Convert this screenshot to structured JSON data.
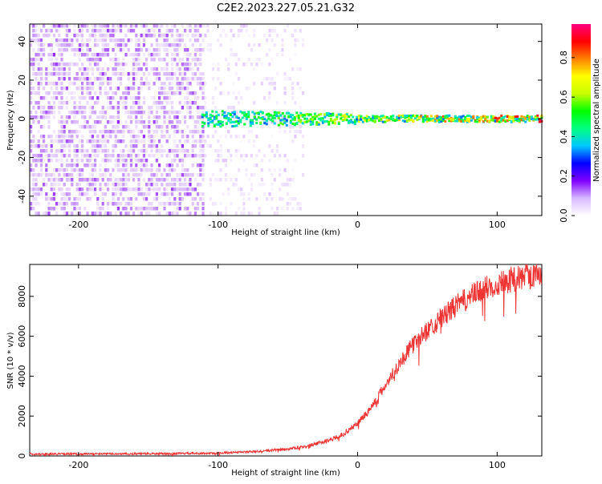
{
  "title": "C2E2.2023.227.05.21.G32",
  "chart_data": [
    {
      "type": "heatmap",
      "title": "C2E2.2023.227.05.21.G32",
      "xlabel": "Height of straight line (km)",
      "ylabel": "Frequency (Hz)",
      "xlim": [
        -235,
        132
      ],
      "ylim": [
        -50,
        49
      ],
      "xticks": [
        -200,
        -100,
        0,
        100
      ],
      "yticks": [
        -40,
        -20,
        0,
        20,
        40
      ],
      "colorbar": {
        "label": "Normalized spectral amplitude",
        "range": [
          0,
          0.97
        ],
        "ticks": [
          0.0,
          0.2,
          0.4,
          0.6,
          0.8
        ],
        "tick_labels": [
          "0.0",
          "0.2",
          "0.4",
          "0.6",
          "0.8"
        ],
        "colormap": [
          "#ffffff",
          "#d8b8ff",
          "#8000ff",
          "#0000ff",
          "#00c8ff",
          "#00ff80",
          "#00ff00",
          "#c8ff00",
          "#ffff00",
          "#ff8000",
          "#ff0000",
          "#ff0080"
        ]
      },
      "regions": [
        {
          "name": "broadband noise (dense)",
          "x_range": [
            -235,
            -110
          ],
          "freq_range": [
            -50,
            49
          ],
          "amplitude": 0.1
        },
        {
          "name": "broadband noise (sparse)",
          "x_range": [
            -110,
            -40
          ],
          "freq_range": [
            -50,
            49
          ],
          "amplitude": 0.05
        },
        {
          "name": "carrier line",
          "x_range": [
            -112,
            132
          ],
          "center_freq": 0,
          "amplitude_range": [
            0.3,
            0.97
          ]
        }
      ]
    },
    {
      "type": "line",
      "xlabel": "Height of straight line (km)",
      "ylabel": "SNR (10 * v/v)",
      "xlim": [
        -235,
        132
      ],
      "ylim": [
        0,
        9600
      ],
      "xticks": [
        -200,
        -100,
        0,
        100
      ],
      "yticks": [
        0,
        2000,
        4000,
        6000,
        8000
      ],
      "color": "#ee3333",
      "series": [
        {
          "x": [
            -235,
            -200,
            -150,
            -110,
            -90,
            -70,
            -50,
            -40,
            -30,
            -20,
            -10,
            0,
            10,
            20,
            30,
            40,
            50,
            60,
            70,
            80,
            90,
            100,
            110,
            120,
            132
          ],
          "values": [
            100,
            100,
            110,
            130,
            170,
            230,
            350,
            450,
            600,
            800,
            1100,
            1650,
            2450,
            3550,
            4650,
            5600,
            6300,
            6900,
            7500,
            7950,
            8350,
            8650,
            8850,
            9000,
            9150
          ]
        }
      ]
    }
  ]
}
